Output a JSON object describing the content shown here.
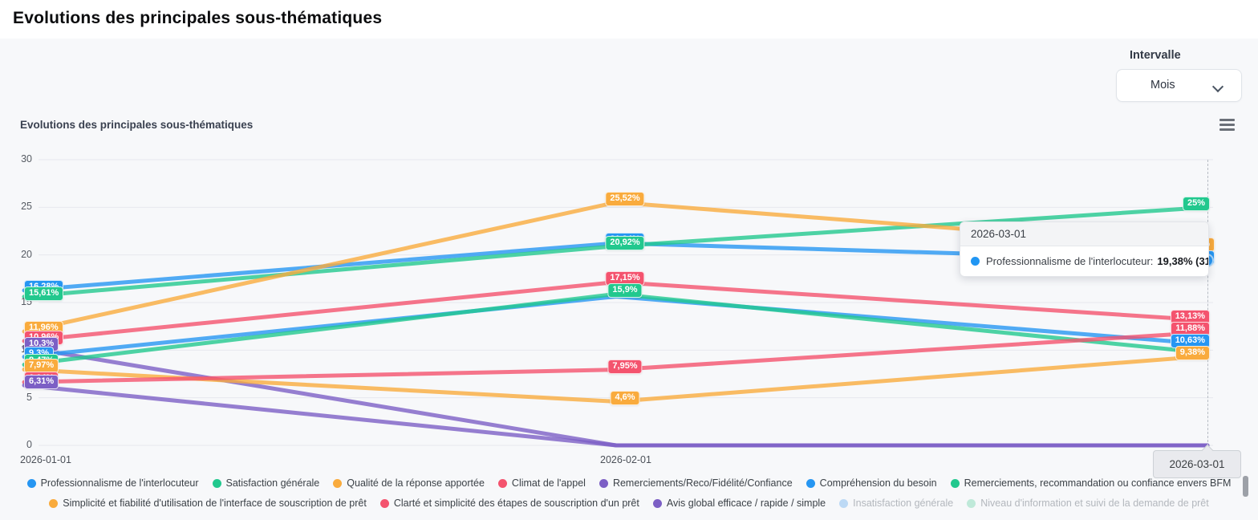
{
  "page": {
    "title": "Evolutions des principales sous-thématiques"
  },
  "controls": {
    "interval_label": "Intervalle",
    "interval_value": "Mois"
  },
  "chart": {
    "title": "Evolutions des principales sous-thématiques",
    "menu_icon": "hamburger-icon"
  },
  "tooltip": {
    "date": "2026-03-01",
    "series_name": "Professionnalisme de l'interlocuteur:",
    "value_text": "19,38% (31)",
    "dot_color": "#2196f3"
  },
  "crosshair_label": "2026-03-01",
  "chart_data": {
    "type": "line",
    "x": [
      "2026-01-01",
      "2026-02-01",
      "2026-03-01"
    ],
    "ylim": [
      0,
      30
    ],
    "yticks": [
      0,
      5,
      10,
      15,
      20,
      25,
      30
    ],
    "grid": true,
    "legend_position": "bottom",
    "series": [
      {
        "name": "Professionnalisme de l'interlocuteur",
        "color": "#2696f2",
        "values": [
          16.28,
          21.24,
          19.38
        ],
        "labels": [
          "16,28%",
          "21,24%",
          "19,38%"
        ],
        "label_show": [
          true,
          true,
          true
        ],
        "right_ext": true
      },
      {
        "name": "Satisfaction générale",
        "color": "#22c88e",
        "values": [
          15.61,
          20.92,
          25
        ],
        "labels": [
          "15,61%",
          "20,92%",
          "25%"
        ],
        "label_show": [
          true,
          true,
          true
        ],
        "right_ext": false
      },
      {
        "name": "Qualité de la réponse apportée",
        "color": "#f9ab3d",
        "values": [
          11.96,
          25.52,
          20.76
        ],
        "labels": [
          "11,96%",
          "25,52%",
          "20,76%"
        ],
        "label_show": [
          true,
          true,
          true
        ],
        "right_ext": true
      },
      {
        "name": "Climat de l'appel",
        "color": "#f4536e",
        "values": [
          10.96,
          17.15,
          13.13
        ],
        "labels": [
          "10,96%",
          "17,15%",
          "13,13%"
        ],
        "label_show": [
          true,
          true,
          true
        ],
        "right_ext": false
      },
      {
        "name": "Remerciements/Reco/Fidélité/Confiance",
        "color": "#7c5fc5",
        "values": [
          10.3,
          0,
          0
        ],
        "labels": [
          "10,3%",
          "0%",
          "0%"
        ],
        "label_show": [
          true,
          false,
          false
        ],
        "right_ext": false
      },
      {
        "name": "Compréhension du besoin",
        "color": "#2696f2",
        "values": [
          9.3,
          15.63,
          10.63
        ],
        "labels": [
          "9,3%",
          "15,63%",
          "10,63%"
        ],
        "label_show": [
          true,
          false,
          true
        ],
        "right_ext": false
      },
      {
        "name": "Remerciements, recommandation ou confiance envers BFM",
        "color": "#22c88e",
        "values": [
          8.47,
          15.9,
          9.7
        ],
        "labels": [
          "8,47%",
          "15,9%",
          "9,7%"
        ],
        "label_show": [
          true,
          true,
          false
        ],
        "right_ext": false
      },
      {
        "name": "Simplicité et fiabilité d'utilisation de l'interface de souscription de prêt",
        "color": "#f9ab3d",
        "values": [
          7.97,
          4.6,
          9.38
        ],
        "labels": [
          "7,97%",
          "4,6%",
          "9,38%"
        ],
        "label_show": [
          true,
          true,
          true
        ],
        "right_ext": false
      },
      {
        "name": "Clarté et simplicité des étapes de souscription d'un prêt",
        "color": "#f4536e",
        "values": [
          6.64,
          7.95,
          11.88
        ],
        "labels": [
          "6,64%",
          "7,95%",
          "11,88%"
        ],
        "label_show": [
          true,
          true,
          true
        ],
        "right_ext": false
      },
      {
        "name": "Avis global efficace / rapide / simple",
        "color": "#7c5fc5",
        "values": [
          6.31,
          0,
          0
        ],
        "labels": [
          "6,31%",
          "0%",
          "0%"
        ],
        "label_show": [
          true,
          false,
          false
        ],
        "right_ext": false
      }
    ],
    "disabled_series": [
      {
        "name": "Insatisfaction générale",
        "color": "#bcd9f5"
      },
      {
        "name": "Niveau d'information et suivi de la demande de prêt",
        "color": "#bfe9d9"
      }
    ],
    "hover_marker": {
      "series_index": 0,
      "point_index": 2,
      "color": "#2696f2"
    }
  }
}
